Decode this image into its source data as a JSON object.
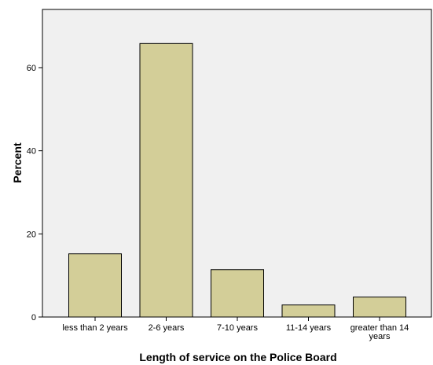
{
  "chart_data": {
    "type": "bar",
    "title": "",
    "xlabel": "Length of service on the Police Board",
    "ylabel": "Percent",
    "categories": [
      [
        "less than 2 years"
      ],
      [
        "2-6 years"
      ],
      [
        "7-10 years"
      ],
      [
        "11-14 years"
      ],
      [
        "greater than 14",
        "years"
      ]
    ],
    "values": [
      15.2,
      65.8,
      11.4,
      2.9,
      4.8
    ],
    "ylim": [
      0,
      74
    ],
    "yticks": [
      0,
      20,
      40,
      60
    ],
    "grid": false,
    "legend": "none",
    "colors": {
      "bar_fill": "#d3ce98",
      "bar_stroke": "#000000",
      "plot_background": "#f0f0f0",
      "page_background": "#ffffff",
      "axis": "#000000"
    }
  }
}
